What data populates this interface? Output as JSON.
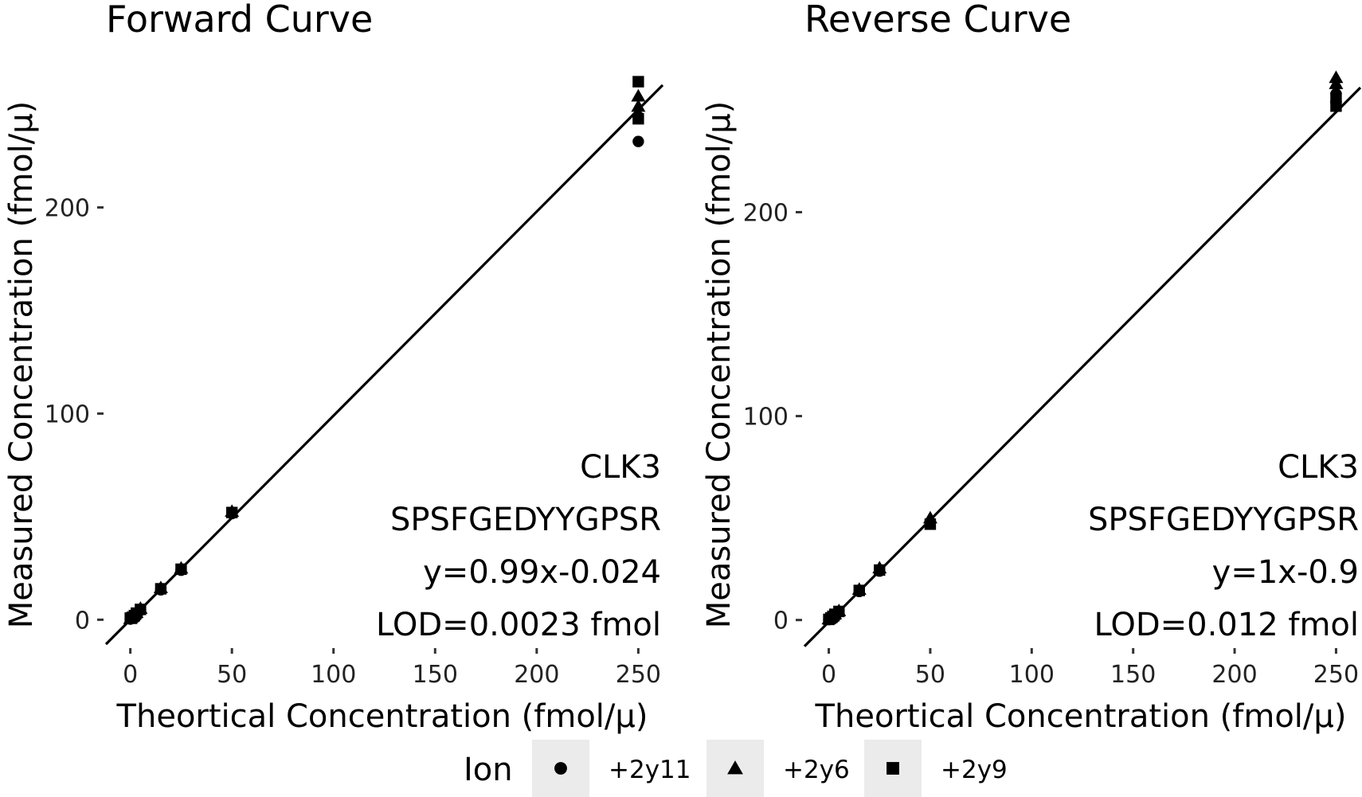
{
  "chart_data": [
    {
      "type": "scatter",
      "title": "Forward Curve",
      "xlabel": "Theortical Concentration (fmol/µ)",
      "ylabel": "Measured Concentration (fmol/µ)",
      "xticks": [
        0,
        50,
        100,
        150,
        200,
        250
      ],
      "yticks": [
        0,
        100,
        200
      ],
      "xlim": [
        -12,
        262
      ],
      "ylim": [
        -13,
        262
      ],
      "fit": {
        "slope": 0.99,
        "intercept": -0.024
      },
      "annotations": [
        "CLK3",
        "SPSFGEDYYGPSR",
        "y=0.99x-0.024",
        "LOD=0.0023 fmol"
      ],
      "series": [
        {
          "name": "+2y11",
          "points": [
            [
              0,
              0.3
            ],
            [
              1,
              1.0
            ],
            [
              2,
              2.2
            ],
            [
              3,
              3.0
            ],
            [
              5,
              4.5
            ],
            [
              15,
              14.5
            ],
            [
              25,
              24.0
            ],
            [
              50,
              51.5
            ],
            [
              250,
              232
            ],
            [
              250,
              244
            ]
          ]
        },
        {
          "name": "+2y6",
          "points": [
            [
              0,
              0.5
            ],
            [
              1,
              1.5
            ],
            [
              2,
              2.5
            ],
            [
              3,
              3.5
            ],
            [
              5,
              5.5
            ],
            [
              15,
              15.5
            ],
            [
              25,
              25.0
            ],
            [
              50,
              52.5
            ],
            [
              250,
              249
            ],
            [
              250,
              254
            ]
          ]
        },
        {
          "name": "+2y9",
          "points": [
            [
              0,
              0.8
            ],
            [
              1,
              1.2
            ],
            [
              2,
              2.0
            ],
            [
              3,
              3.2
            ],
            [
              5,
              5.0
            ],
            [
              15,
              15.0
            ],
            [
              25,
              24.5
            ],
            [
              50,
              52.0
            ],
            [
              250,
              243
            ],
            [
              250,
              261
            ]
          ]
        }
      ]
    },
    {
      "type": "scatter",
      "title": "Reverse Curve",
      "xlabel": "Theortical Concentration (fmol/µ)",
      "ylabel": "Measured Concentration (fmol/µ)",
      "xticks": [
        0,
        50,
        100,
        150,
        200,
        250
      ],
      "yticks": [
        0,
        100,
        200
      ],
      "xlim": [
        -12,
        262
      ],
      "ylim": [
        -13,
        265
      ],
      "fit": {
        "slope": 1,
        "intercept": -0.9
      },
      "annotations": [
        "CLK3",
        "SPSFGEDYYGPSR",
        "y=1x-0.9",
        "LOD=0.012 fmol"
      ],
      "series": [
        {
          "name": "+2y11",
          "points": [
            [
              0,
              0.2
            ],
            [
              1,
              0.8
            ],
            [
              2,
              1.6
            ],
            [
              3,
              2.5
            ],
            [
              5,
              4.0
            ],
            [
              15,
              14.0
            ],
            [
              25,
              24.0
            ],
            [
              50,
              48.0
            ],
            [
              250,
              254
            ],
            [
              250,
              258
            ]
          ]
        },
        {
          "name": "+2y6",
          "points": [
            [
              0,
              0.5
            ],
            [
              1,
              1.2
            ],
            [
              2,
              2.0
            ],
            [
              3,
              3.0
            ],
            [
              5,
              4.5
            ],
            [
              15,
              15.0
            ],
            [
              25,
              25.5
            ],
            [
              50,
              50.0
            ],
            [
              250,
              263
            ],
            [
              250,
              266
            ]
          ]
        },
        {
          "name": "+2y9",
          "points": [
            [
              0,
              0.3
            ],
            [
              1,
              1.0
            ],
            [
              2,
              1.8
            ],
            [
              3,
              2.8
            ],
            [
              5,
              4.2
            ],
            [
              15,
              14.5
            ],
            [
              25,
              24.5
            ],
            [
              50,
              47.0
            ],
            [
              250,
              252
            ],
            [
              250,
              256
            ]
          ]
        }
      ]
    }
  ],
  "legend": {
    "title": "Ion",
    "items": [
      {
        "label": "+2y11",
        "shape": "circle"
      },
      {
        "label": "+2y6",
        "shape": "triangle"
      },
      {
        "label": "+2y9",
        "shape": "square"
      }
    ],
    "key_background": "#ebebeb"
  }
}
